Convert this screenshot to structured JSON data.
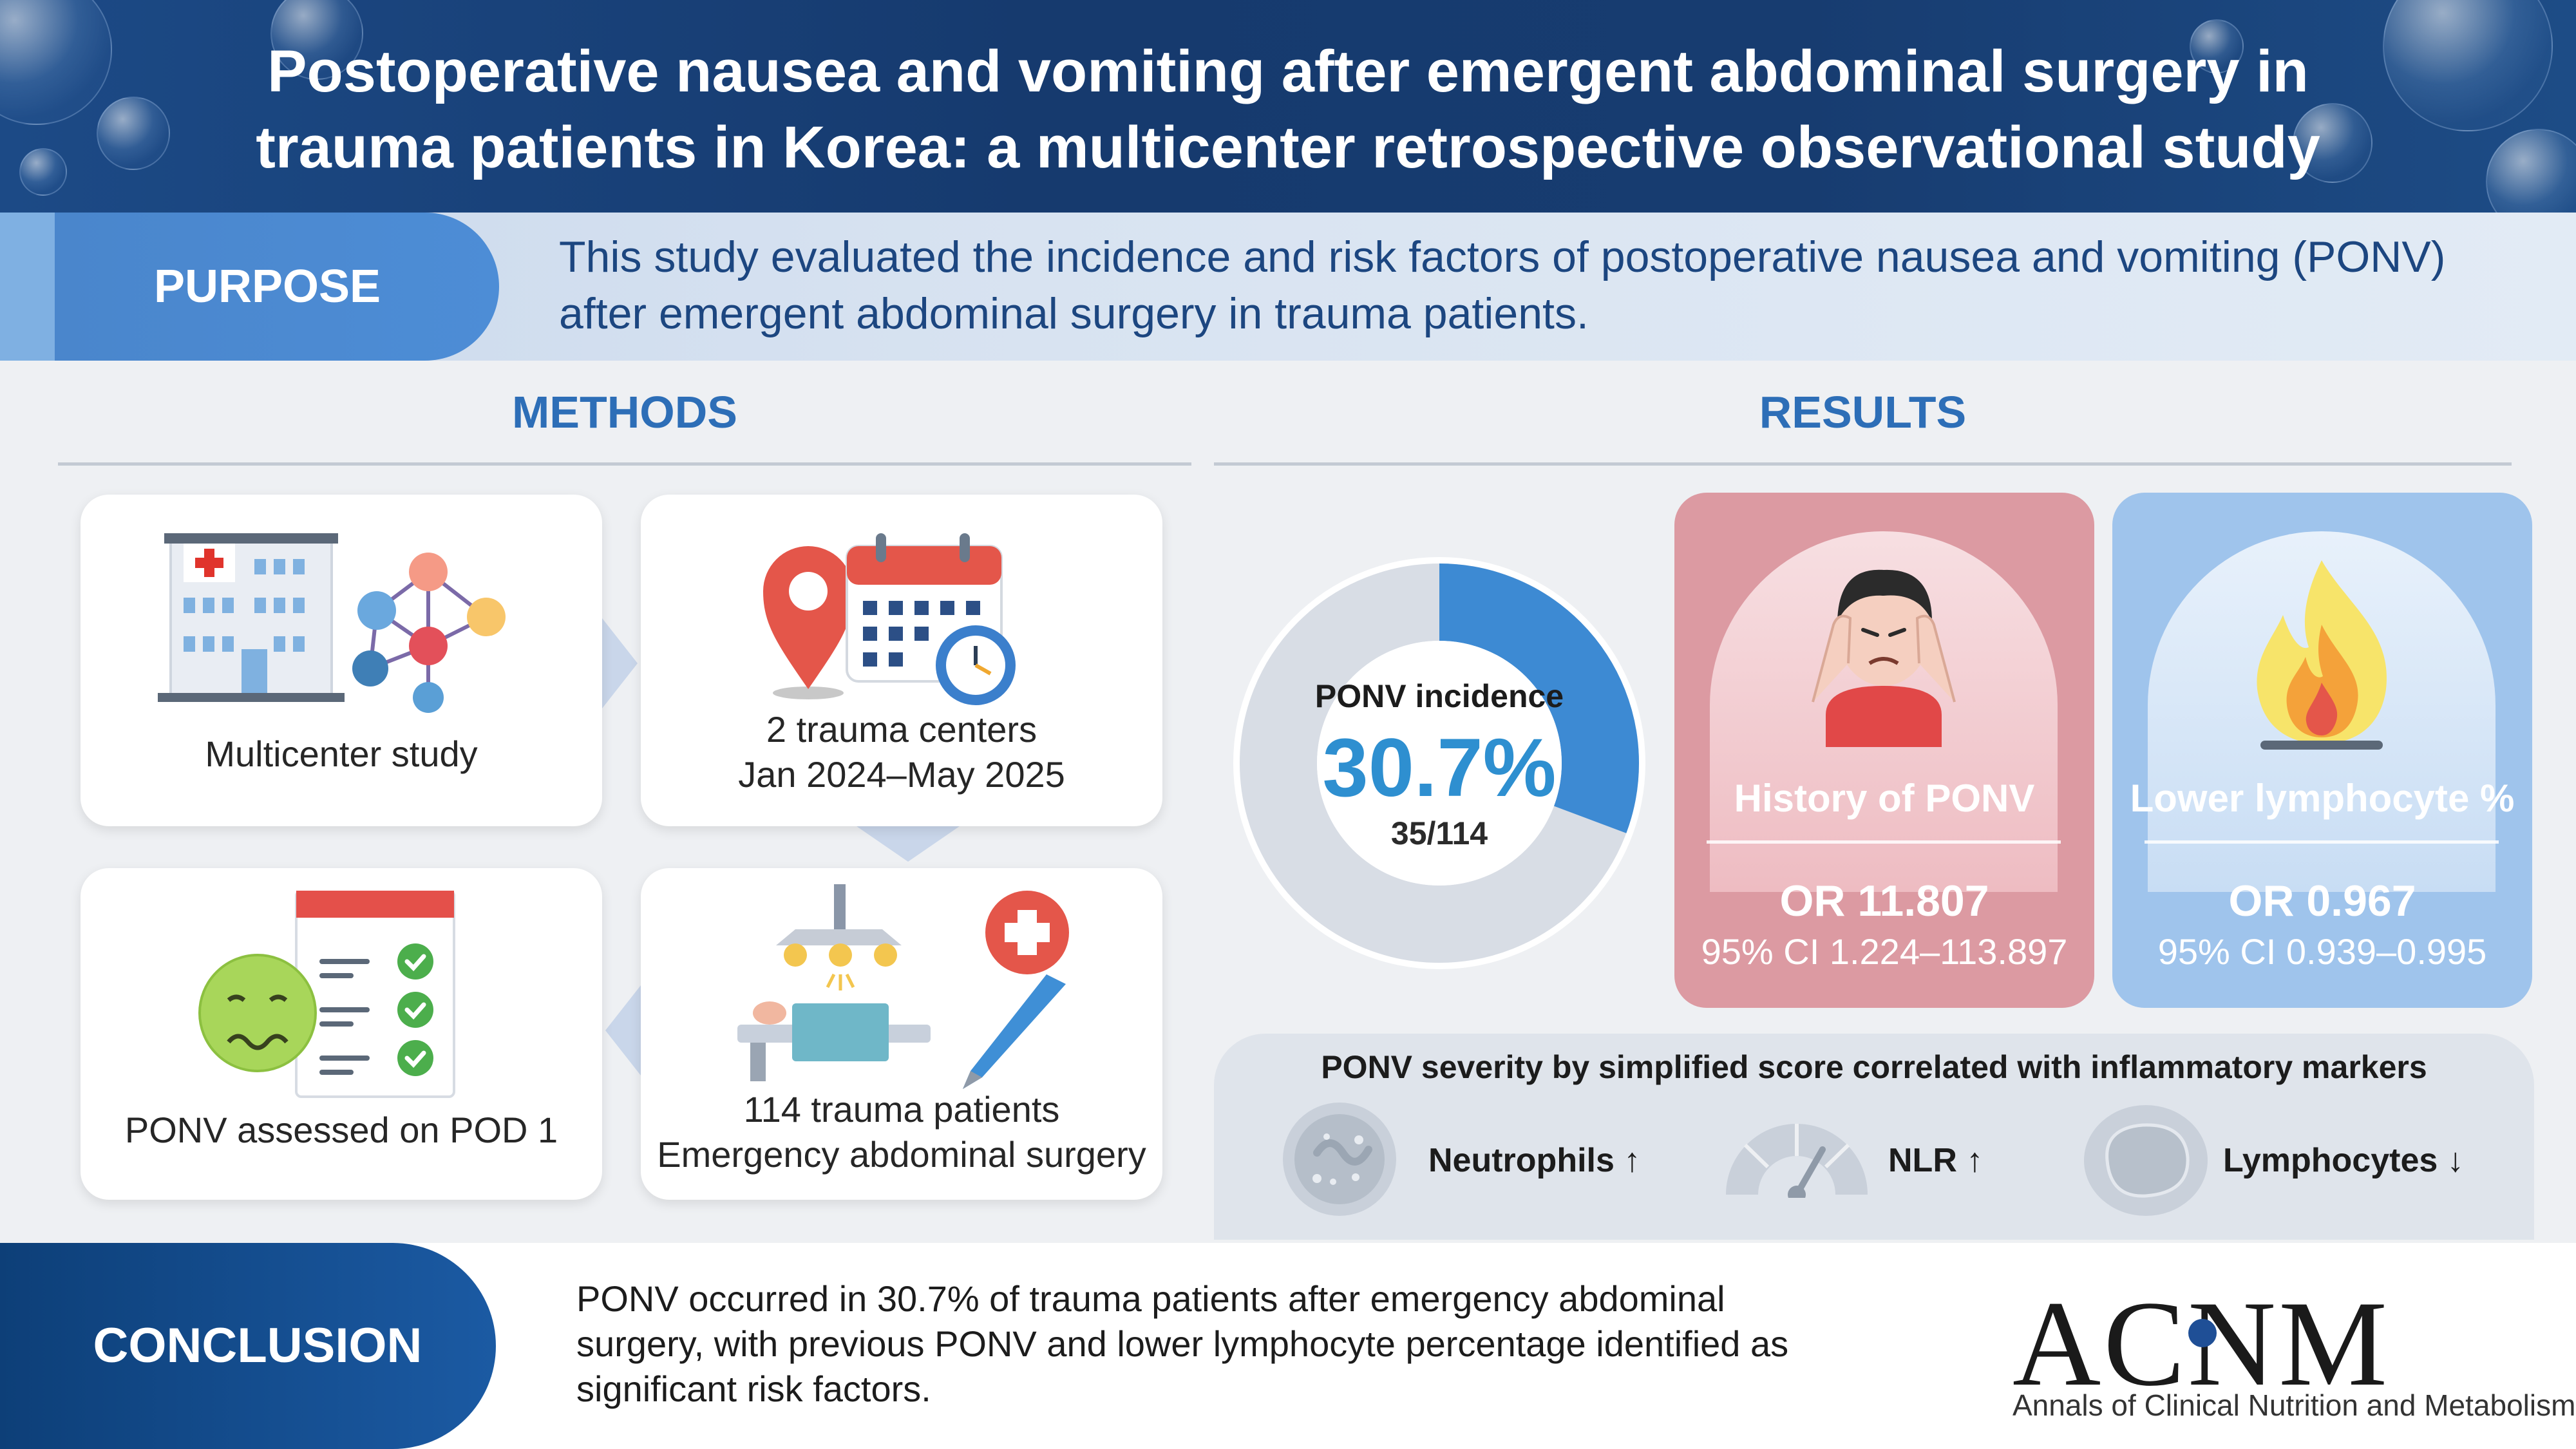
{
  "header": {
    "title_line1": "Postoperative nausea and vomiting after emergent abdominal surgery in",
    "title_line2": "trauma patients in Korea: a multicenter retrospective observational study"
  },
  "purpose": {
    "label": "PURPOSE",
    "text": "This study evaluated the incidence and risk factors of postoperative nausea and vomiting (PONV) after emergent abdominal surgery in trauma patients."
  },
  "methods": {
    "heading": "METHODS",
    "cards": [
      {
        "label": "Multicenter study",
        "icon": "hospital-network-icon"
      },
      {
        "label_line1": "2 trauma centers",
        "label_line2": "Jan 2024–May 2025",
        "icon": "calendar-location-icon"
      },
      {
        "label": "PONV assessed on POD 1",
        "icon": "nausea-checklist-icon"
      },
      {
        "label_line1": "114 trauma patients",
        "label_line2": "Emergency abdominal surgery",
        "icon": "surgery-icon"
      }
    ]
  },
  "results": {
    "heading": "RESULTS",
    "incidence": {
      "label": "PONV incidence",
      "percent_text": "30.7%",
      "fraction_text": "35/114",
      "value": 0.307
    },
    "risk_factors": [
      {
        "name": "History of PONV",
        "or": "OR 11.807",
        "ci": "95% CI 1.224–113.897",
        "icon": "headache-person-icon"
      },
      {
        "name": "Lower lymphocyte %",
        "or": "OR 0.967",
        "ci": "95% CI 0.939–0.995",
        "icon": "fire-icon"
      }
    ],
    "severity": {
      "title": "PONV severity by simplified score correlated with inflammatory markers",
      "markers": [
        {
          "label": "Neutrophils ↑",
          "icon": "neutrophil-icon"
        },
        {
          "label": "NLR ↑",
          "icon": "gauge-icon"
        },
        {
          "label": "Lymphocytes ↓",
          "icon": "lymphocyte-icon"
        }
      ]
    }
  },
  "conclusion": {
    "label": "CONCLUSION",
    "text": "PONV occurred in 30.7% of trauma patients after emergency abdominal surgery, with previous PONV and lower lymphocyte percentage identified as significant risk factors."
  },
  "journal": {
    "logo": "ACNM",
    "name": "Annals of Clinical Nutrition and Metabolism"
  },
  "colors": {
    "header_bg": "#173c70",
    "accent_blue": "#2d6eb7",
    "ponv_card": "#dc9aa2",
    "lymphocyte_card": "#9fc4ec",
    "donut_highlight": "#3d8ad3",
    "donut_base": "#d8dde5"
  }
}
